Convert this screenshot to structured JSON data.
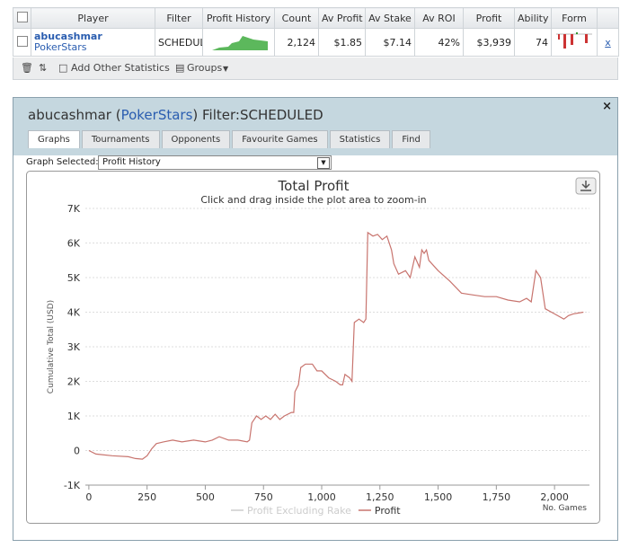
{
  "table": {
    "headers": [
      "Player",
      "Filter",
      "Profit History",
      "Count",
      "Av Profit",
      "Av Stake",
      "Av ROI",
      "Profit",
      "Ability",
      "Form"
    ],
    "row": {
      "player": "abucashmar",
      "site": "PokerStars",
      "filter": "SCHEDUL",
      "count": "2,124",
      "av_profit": "$1.85",
      "av_stake": "$7.14",
      "av_roi": "42%",
      "profit": "$3,939",
      "ability": "74",
      "remove": "x"
    }
  },
  "toolbar": {
    "add_stats": "Add Other Statistics",
    "groups": "Groups"
  },
  "panel": {
    "title_parts": [
      "abucashmar (",
      "PokerStars",
      ") Filter:SCHEDULED"
    ],
    "tabs": [
      "Graphs",
      "Tournaments",
      "Opponents",
      "Favourite Games",
      "Statistics",
      "Find"
    ],
    "graph_label": "Graph Selected:",
    "graph_selected": "Profit History"
  },
  "chart_data": {
    "type": "line",
    "title": "Total Profit",
    "subtitle": "Click and drag inside the plot area to zoom-in",
    "y_label": "Cumulative Total (USD)",
    "x_label": "No. Games",
    "x": [
      0,
      30,
      100,
      170,
      200,
      230,
      250,
      270,
      290,
      320,
      360,
      400,
      450,
      500,
      530,
      560,
      600,
      640,
      680,
      690,
      700,
      720,
      740,
      760,
      780,
      800,
      820,
      840,
      870,
      880,
      885,
      900,
      910,
      930,
      960,
      980,
      1000,
      1030,
      1060,
      1080,
      1090,
      1100,
      1120,
      1130,
      1140,
      1160,
      1180,
      1190,
      1198,
      1220,
      1240,
      1260,
      1280,
      1300,
      1310,
      1330,
      1360,
      1380,
      1400,
      1420,
      1430,
      1440,
      1450,
      1460,
      1500,
      1550,
      1600,
      1650,
      1700,
      1750,
      1800,
      1850,
      1880,
      1900,
      1920,
      1940,
      1960,
      2000,
      2040,
      2060,
      2080,
      2124
    ],
    "series": [
      {
        "name": "Profit",
        "color": "#c8746e",
        "values": [
          0,
          -100,
          -150,
          -180,
          -230,
          -250,
          -150,
          50,
          200,
          250,
          300,
          250,
          300,
          250,
          300,
          400,
          300,
          300,
          250,
          300,
          800,
          1000,
          900,
          1000,
          900,
          1050,
          900,
          1000,
          1100,
          1100,
          1700,
          1900,
          2400,
          2500,
          2500,
          2300,
          2300,
          2100,
          2000,
          1900,
          1900,
          2200,
          2100,
          2000,
          3700,
          3800,
          3700,
          3800,
          6300,
          6200,
          6250,
          6100,
          6200,
          5800,
          5400,
          5100,
          5200,
          5000,
          5600,
          5300,
          5800,
          5700,
          5800,
          5500,
          5200,
          4900,
          4550,
          4500,
          4450,
          4450,
          4350,
          4300,
          4400,
          4300,
          5200,
          5000,
          4100,
          3950,
          3800,
          3900,
          3950,
          4000
        ]
      }
    ],
    "hidden_series": [
      {
        "name": "Profit Excluding Rake",
        "color": "#cccccc"
      }
    ],
    "xlim": [
      -15,
      2150
    ],
    "xticks": [
      0,
      250,
      500,
      750,
      {
        "value": 1000,
        "label": "1,000"
      },
      {
        "value": 1250,
        "label": "1,250"
      },
      {
        "value": 1500,
        "label": "1,500"
      },
      {
        "value": 1750,
        "label": "1,750"
      },
      {
        "value": 2000,
        "label": "2,000"
      }
    ],
    "ylim": [
      -1000,
      7000
    ],
    "yticks": [
      {
        "value": -1000,
        "label": "-1K"
      },
      0,
      {
        "value": 1000,
        "label": "1K"
      },
      {
        "value": 2000,
        "label": "2K"
      },
      {
        "value": 3000,
        "label": "3K"
      },
      {
        "value": 4000,
        "label": "4K"
      },
      {
        "value": 5000,
        "label": "5K"
      },
      {
        "value": 6000,
        "label": "6K"
      },
      {
        "value": 7000,
        "label": "7K"
      }
    ],
    "grid": true
  }
}
